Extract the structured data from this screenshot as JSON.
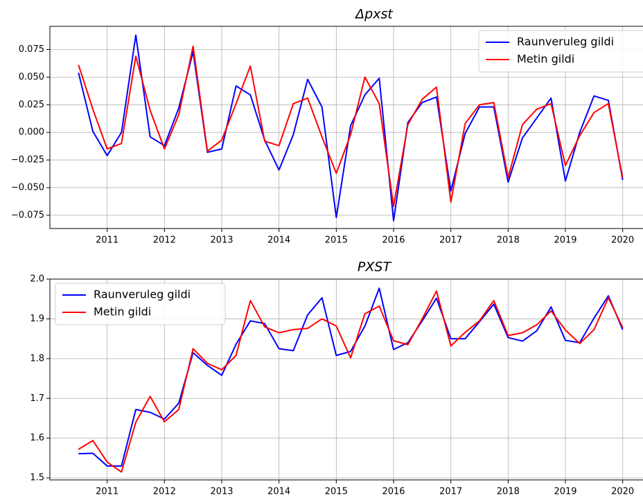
{
  "chart_data": [
    {
      "type": "line",
      "title": "Δpxst",
      "x": [
        2010.5,
        2010.75,
        2011,
        2011.25,
        2011.5,
        2011.75,
        2012,
        2012.25,
        2012.5,
        2012.75,
        2013,
        2013.25,
        2013.5,
        2013.75,
        2014,
        2014.25,
        2014.5,
        2014.75,
        2015,
        2015.25,
        2015.5,
        2015.75,
        2016,
        2016.25,
        2016.5,
        2016.75,
        2017,
        2017.25,
        2017.5,
        2017.75,
        2018,
        2018.25,
        2018.5,
        2018.75,
        2019,
        2019.25,
        2019.5,
        2019.75,
        2020
      ],
      "series": [
        {
          "name": "Raunveruleg gildi",
          "color": "#0000ff",
          "values": [
            0.054,
            0.001,
            -0.021,
            0.0,
            0.088,
            -0.004,
            -0.012,
            0.022,
            0.073,
            -0.018,
            -0.015,
            0.042,
            0.034,
            -0.007,
            -0.034,
            -0.002,
            0.048,
            0.023,
            -0.077,
            0.006,
            0.034,
            0.049,
            -0.08,
            0.009,
            0.027,
            0.032,
            -0.053,
            -0.001,
            0.023,
            0.023,
            -0.045,
            -0.005,
            0.013,
            0.031,
            -0.044,
            0.0,
            0.033,
            0.029,
            -0.043
          ]
        },
        {
          "name": "Metin gildi",
          "color": "#ff0000",
          "values": [
            0.061,
            0.021,
            -0.015,
            -0.01,
            0.069,
            0.02,
            -0.015,
            0.016,
            0.078,
            -0.017,
            -0.007,
            0.026,
            0.06,
            -0.008,
            -0.012,
            0.026,
            0.031,
            -0.004,
            -0.037,
            -0.002,
            0.05,
            0.026,
            -0.067,
            0.007,
            0.03,
            0.041,
            -0.063,
            0.008,
            0.025,
            0.027,
            -0.041,
            0.007,
            0.021,
            0.026,
            -0.03,
            -0.003,
            0.018,
            0.026,
            -0.041
          ]
        }
      ],
      "xlim": [
        2010,
        2020.5
      ],
      "xticks": [
        2011,
        2012,
        2013,
        2014,
        2015,
        2016,
        2017,
        2018,
        2019,
        2020
      ],
      "ylim": [
        -0.087,
        0.096
      ],
      "yticks": [
        {
          "value": -0.075,
          "label": "−0.075"
        },
        {
          "value": -0.05,
          "label": "−0.050"
        },
        {
          "value": -0.025,
          "label": "−0.025"
        },
        {
          "value": 0,
          "label": "0.000"
        },
        {
          "value": 0.025,
          "label": "0.025"
        },
        {
          "value": 0.05,
          "label": "0.050"
        },
        {
          "value": 0.075,
          "label": "0.075"
        }
      ],
      "grid": true,
      "legend": "upper right"
    },
    {
      "type": "line",
      "title": "PXST",
      "x": [
        2010.5,
        2010.75,
        2011,
        2011.25,
        2011.5,
        2011.75,
        2012,
        2012.25,
        2012.5,
        2012.75,
        2013,
        2013.25,
        2013.5,
        2013.75,
        2014,
        2014.25,
        2014.5,
        2014.75,
        2015,
        2015.25,
        2015.5,
        2015.75,
        2016,
        2016.25,
        2016.5,
        2016.75,
        2017,
        2017.25,
        2017.5,
        2017.75,
        2018,
        2018.25,
        2018.5,
        2018.75,
        2019,
        2019.25,
        2019.5,
        2019.75,
        2020
      ],
      "series": [
        {
          "name": "Raunveruleg gildi",
          "color": "#0000ff",
          "values": [
            1.561,
            1.562,
            1.53,
            1.53,
            1.672,
            1.665,
            1.648,
            1.688,
            1.815,
            1.783,
            1.758,
            1.836,
            1.895,
            1.888,
            1.825,
            1.82,
            1.91,
            1.953,
            1.808,
            1.818,
            1.882,
            1.977,
            1.823,
            1.84,
            1.895,
            1.952,
            1.85,
            1.85,
            1.893,
            1.937,
            1.853,
            1.844,
            1.87,
            1.93,
            1.846,
            1.84,
            1.902,
            1.958,
            1.873
          ]
        },
        {
          "name": "Metin gildi",
          "color": "#ff0000",
          "values": [
            1.572,
            1.594,
            1.54,
            1.515,
            1.64,
            1.705,
            1.641,
            1.672,
            1.825,
            1.788,
            1.772,
            1.808,
            1.946,
            1.88,
            1.865,
            1.873,
            1.876,
            1.9,
            1.882,
            1.802,
            1.913,
            1.932,
            1.845,
            1.835,
            1.9,
            1.97,
            1.832,
            1.866,
            1.895,
            1.946,
            1.858,
            1.865,
            1.885,
            1.92,
            1.872,
            1.838,
            1.873,
            1.953,
            1.878
          ]
        }
      ],
      "xlim": [
        2010,
        2020.5
      ],
      "xticks": [
        2011,
        2012,
        2013,
        2014,
        2015,
        2016,
        2017,
        2018,
        2019,
        2020
      ],
      "ylim": [
        1.495,
        2.0
      ],
      "yticks": [
        1.5,
        1.6,
        1.7,
        1.8,
        1.9,
        {
          "value": 2.0,
          "label": "2.0"
        }
      ],
      "grid": true,
      "legend": "upper left"
    }
  ]
}
